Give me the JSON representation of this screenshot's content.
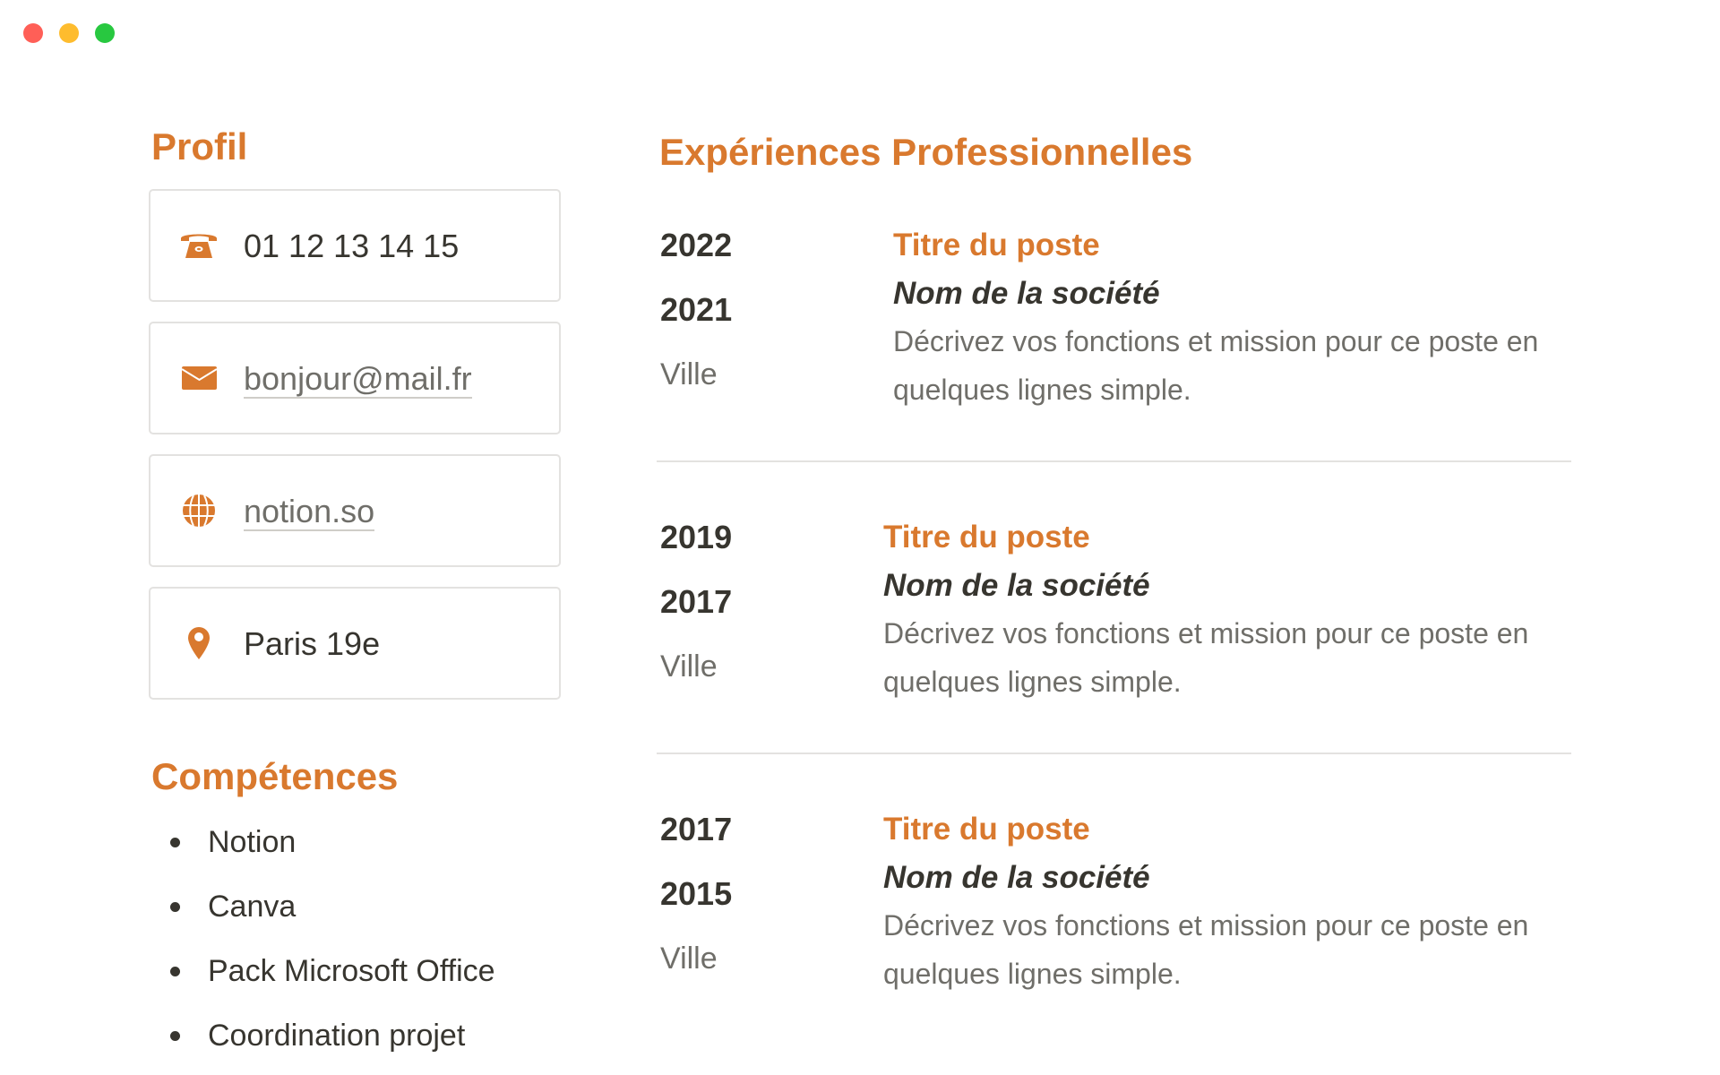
{
  "window": {
    "controls": [
      {
        "name": "close",
        "color": "#ff5f57"
      },
      {
        "name": "minimize",
        "color": "#febc2e"
      },
      {
        "name": "maximize",
        "color": "#28c840"
      }
    ]
  },
  "accent": "#d9792e",
  "profile": {
    "heading": "Profil",
    "items": [
      {
        "icon": "phone-icon",
        "text": "01 12 13 14 15"
      },
      {
        "icon": "mail-icon",
        "text": "bonjour@mail.fr"
      },
      {
        "icon": "globe-icon",
        "text": "notion.so"
      },
      {
        "icon": "location-pin-icon",
        "text": "Paris 19e"
      }
    ]
  },
  "skills": {
    "heading": "Compétences",
    "items": [
      "Notion",
      "Canva",
      "Pack Microsoft Office",
      "Coordination projet"
    ]
  },
  "experience": {
    "heading": "Expériences Professionnelles",
    "jobs": [
      {
        "end": "2022",
        "start": "2021",
        "city": "Ville",
        "title": "Titre du poste",
        "company": "Nom de la société",
        "description": "Décrivez vos fonctions et mission pour ce poste en quelques lignes simple."
      },
      {
        "end": "2019",
        "start": "2017",
        "city": "Ville",
        "title": "Titre du poste",
        "company": "Nom de la société",
        "description": "Décrivez vos fonctions et mission pour ce poste en quelques lignes simple."
      },
      {
        "end": "2017",
        "start": "2015",
        "city": "Ville",
        "title": "Titre du poste",
        "company": "Nom de la société",
        "description": "Décrivez vos fonctions et mission pour ce poste en quelques lignes simple."
      }
    ]
  }
}
